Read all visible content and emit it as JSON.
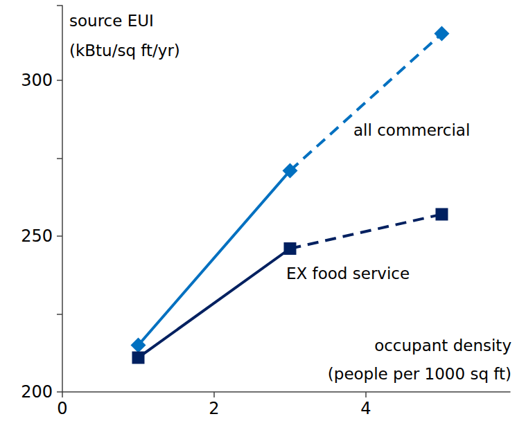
{
  "chart_data": {
    "type": "line",
    "ylabel": "source EUI\n(kBtu/sq ft/yr)",
    "xlabel": "occupant density\n(people per 1000 sq ft)",
    "x": [
      1,
      3,
      5
    ],
    "series": [
      {
        "name": "all commercial",
        "color": "#0070c0",
        "marker": "diamond",
        "line_style": [
          "solid",
          "dashed"
        ],
        "values": [
          215,
          271,
          315
        ]
      },
      {
        "name": "EX food service",
        "color": "#002060",
        "marker": "square",
        "line_style": [
          "solid",
          "dashed"
        ],
        "values": [
          211,
          246,
          257
        ]
      }
    ],
    "xlim": [
      0,
      5.9
    ],
    "xticks": [
      0,
      2,
      4
    ],
    "ylim": [
      200,
      324
    ],
    "yticks": [
      200,
      250,
      300
    ],
    "grid": false
  }
}
